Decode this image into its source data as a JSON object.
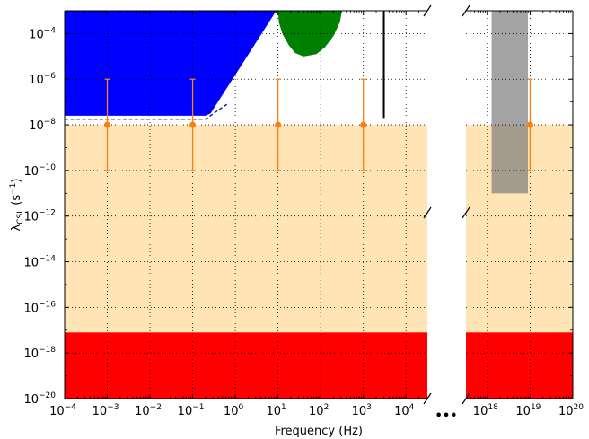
{
  "chart_data": {
    "type": "area",
    "xlabel": "Frequency (Hz)",
    "ylabel_main": "λ",
    "ylabel_sub": "CSL",
    "ylabel_unit": "(s",
    "ylabel_unit_exp": "−1",
    "ylabel_unit_close": ")",
    "y_log": true,
    "ylim_exponents": [
      -20,
      -3
    ],
    "grid": true,
    "break_marker": "•••",
    "panels": [
      {
        "id": "left",
        "x_log": true,
        "xlim_exponents": [
          -4,
          4.5
        ],
        "xticks": [
          {
            "base": "10",
            "exp": "-4"
          },
          {
            "base": "10",
            "exp": "-3"
          },
          {
            "base": "10",
            "exp": "-2"
          },
          {
            "base": "10",
            "exp": "-1"
          },
          {
            "base": "10",
            "exp": "0"
          },
          {
            "base": "10",
            "exp": "1"
          },
          {
            "base": "10",
            "exp": "2"
          },
          {
            "base": "10",
            "exp": "3"
          },
          {
            "base": "10",
            "exp": "4"
          }
        ]
      },
      {
        "id": "right",
        "x_log": true,
        "xlim_exponents": [
          17.5,
          20
        ],
        "xticks": [
          {
            "base": "10",
            "exp": "18"
          },
          {
            "base": "10",
            "exp": "19"
          },
          {
            "base": "10",
            "exp": "20"
          }
        ]
      }
    ],
    "yticks": [
      {
        "base": "10",
        "exp": "-4"
      },
      {
        "base": "10",
        "exp": "-6"
      },
      {
        "base": "10",
        "exp": "-8"
      },
      {
        "base": "10",
        "exp": "-10"
      },
      {
        "base": "10",
        "exp": "-12"
      },
      {
        "base": "10",
        "exp": "-14"
      },
      {
        "base": "10",
        "exp": "-16"
      },
      {
        "base": "10",
        "exp": "-18"
      },
      {
        "base": "10",
        "exp": "-20"
      }
    ],
    "regions": [
      {
        "kind": "band",
        "color": "#ffe4b5",
        "y_exp_range": [
          -17.1,
          -8
        ],
        "x_exp_range": [
          -4,
          20
        ]
      },
      {
        "kind": "band",
        "color": "#ff0000",
        "y_exp_range": [
          -20,
          -17.1
        ],
        "x_exp_range": [
          -4,
          20
        ]
      },
      {
        "kind": "polygon",
        "color": "#0000ff",
        "points_exp": [
          [
            -4,
            -3
          ],
          [
            0.96,
            -3
          ],
          [
            -0.58,
            -7.5
          ],
          [
            -0.7,
            -7.6
          ],
          [
            -4,
            -7.6
          ]
        ]
      },
      {
        "kind": "polygon",
        "color": "#008000",
        "points_exp": [
          [
            1.0,
            -3
          ],
          [
            2.5,
            -3
          ],
          [
            2.45,
            -3.5
          ],
          [
            2.3,
            -4.1
          ],
          [
            2.1,
            -4.6
          ],
          [
            1.9,
            -4.9
          ],
          [
            1.6,
            -5.0
          ],
          [
            1.4,
            -4.85
          ],
          [
            1.25,
            -4.5
          ],
          [
            1.1,
            -4.0
          ],
          [
            1.02,
            -3.5
          ]
        ]
      },
      {
        "kind": "rect",
        "color": "#7f7f7f",
        "x_exp_range": [
          18.1,
          18.95
        ],
        "y_exp_range": [
          -11,
          -3
        ]
      },
      {
        "kind": "vline",
        "color": "#000000",
        "x_exp": 3.48,
        "y_exp_range": [
          -7.7,
          -3
        ]
      }
    ],
    "dashed_line": {
      "color": "#00008b",
      "points_exp": [
        [
          -4,
          -7.75
        ],
        [
          -0.7,
          -7.75
        ],
        [
          -0.2,
          -7.1
        ]
      ]
    },
    "error_points": {
      "color": "#ff7f0e",
      "points": [
        {
          "x_exp": -3,
          "y_exp": -8,
          "ylo_exp": -10,
          "yhi_exp": -6
        },
        {
          "x_exp": -1,
          "y_exp": -8,
          "ylo_exp": -10,
          "yhi_exp": -6
        },
        {
          "x_exp": 1,
          "y_exp": -8,
          "ylo_exp": -10,
          "yhi_exp": -6
        },
        {
          "x_exp": 3,
          "y_exp": -8,
          "ylo_exp": -10,
          "yhi_exp": -6
        },
        {
          "x_exp": 19,
          "y_exp": -8,
          "ylo_exp": -10,
          "yhi_exp": -6
        }
      ]
    }
  }
}
